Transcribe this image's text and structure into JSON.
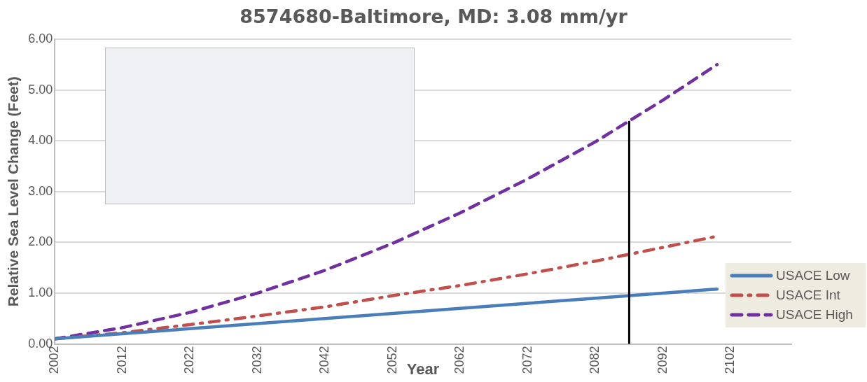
{
  "chart_data": {
    "type": "line",
    "title": "8574680-Baltimore, MD: 3.08 mm/yr",
    "xlabel": "Year",
    "ylabel": "Relative Sea Level Change (Feet)",
    "x": [
      2002,
      2012,
      2022,
      2032,
      2042,
      2052,
      2062,
      2072,
      2082,
      2092,
      2100
    ],
    "series": [
      {
        "name": "USACE Low",
        "color": "#4a7ebb",
        "line_style": "solid",
        "values": [
          0.1,
          0.2,
          0.3,
          0.4,
          0.5,
          0.6,
          0.7,
          0.8,
          0.9,
          1.0,
          1.08
        ]
      },
      {
        "name": "USACE Int",
        "color": "#c0504d",
        "line_style": "dashdot",
        "values": [
          0.1,
          0.22,
          0.38,
          0.55,
          0.73,
          0.95,
          1.15,
          1.38,
          1.63,
          1.9,
          2.12
        ]
      },
      {
        "name": "USACE High",
        "color": "#7030a0",
        "line_style": "dashed",
        "values": [
          0.1,
          0.32,
          0.62,
          1.0,
          1.45,
          1.98,
          2.58,
          3.25,
          3.98,
          4.8,
          5.5
        ]
      }
    ],
    "xlim": [
      2002,
      2111
    ],
    "xticks": [
      2002,
      2012,
      2022,
      2032,
      2042,
      2052,
      2062,
      2072,
      2082,
      2092,
      2102
    ],
    "ylim": [
      0,
      6
    ],
    "yticks": [
      {
        "value": 0,
        "label": "0.00"
      },
      {
        "value": 1,
        "label": "1.00"
      },
      {
        "value": 2,
        "label": "2.00"
      },
      {
        "value": 3,
        "label": "3.00"
      },
      {
        "value": 4,
        "label": "4.00"
      },
      {
        "value": 5,
        "label": "5.00"
      },
      {
        "value": 6,
        "label": "6.00"
      }
    ],
    "ref_lines": [
      {
        "axis": "x",
        "value": 2087,
        "color": "#000000"
      }
    ],
    "grid": "y",
    "legend": "bottom right",
    "marker": "none"
  }
}
